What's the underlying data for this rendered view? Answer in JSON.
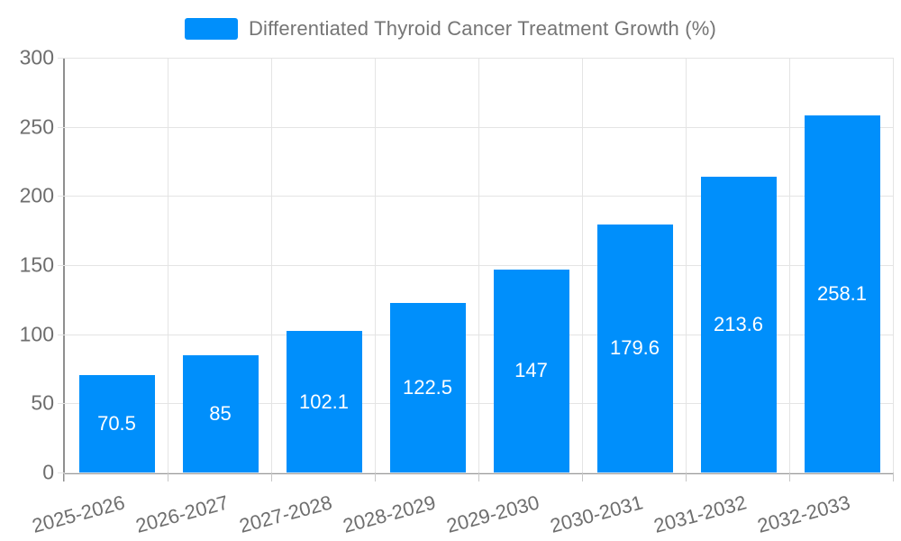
{
  "legend": {
    "label": "Differentiated Thyroid Cancer Treatment Growth (%)",
    "swatch_color": "#008FFB"
  },
  "chart_data": {
    "type": "bar",
    "title": "Differentiated Thyroid Cancer Treatment Growth (%)",
    "categories": [
      "2025-2026",
      "2026-2027",
      "2027-2028",
      "2028-2029",
      "2029-2030",
      "2030-2031",
      "2031-2032",
      "2032-2033"
    ],
    "values": [
      70.5,
      85,
      102.1,
      122.5,
      147,
      179.6,
      213.6,
      258.1
    ],
    "data_labels": [
      "70.5",
      "85",
      "102.1",
      "122.5",
      "147",
      "179.6",
      "213.6",
      "258.1"
    ],
    "xlabel": "",
    "ylabel": "",
    "ylim": [
      0,
      300
    ],
    "yticks": [
      0,
      50,
      100,
      150,
      200,
      250,
      300
    ],
    "grid": true,
    "legend_position": "top",
    "bar_color": "#008FFB",
    "data_label_color": "#ffffff"
  },
  "colors": {
    "bar": "#008FFB",
    "grid": "#e4e4e4",
    "axis": "#9a9a9a",
    "tick": "#c7c7c7",
    "axis_label": "#6e6e6e",
    "legend_text": "#757575"
  }
}
